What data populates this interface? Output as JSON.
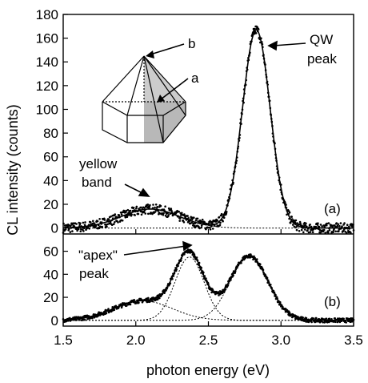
{
  "chart_data": {
    "type": "scatter",
    "xlabel": "photon energy (eV)",
    "ylabel": "CL intensity (counts)",
    "xlim": [
      1.5,
      3.5
    ],
    "x_ticks": [
      "1.5",
      "2.0",
      "2.5",
      "3.0",
      "3.5"
    ],
    "grid": false,
    "panels": [
      {
        "tag": "(a)",
        "ylim": [
          -5,
          180
        ],
        "y_ticks": [
          "0",
          "20",
          "40",
          "60",
          "80",
          "100",
          "120",
          "140",
          "160",
          "180"
        ],
        "components": [
          {
            "peak_ev": 2.1,
            "height": 16,
            "width_ev": 0.2
          },
          {
            "peak_ev": 2.83,
            "height": 167,
            "width_ev": 0.095
          }
        ],
        "annotations": [
          {
            "text": "QW",
            "x": 3.06,
            "y": 168
          },
          {
            "text": "peak",
            "x": 3.06,
            "y": 141
          },
          {
            "text": "yellow",
            "x": 1.8,
            "y": 45
          },
          {
            "text": "band",
            "x": 1.8,
            "y": 25
          }
        ]
      },
      {
        "tag": "(b)",
        "ylim": [
          -5,
          75
        ],
        "y_ticks": [
          "0",
          "20",
          "40",
          "60"
        ],
        "components": [
          {
            "peak_ev": 2.05,
            "height": 17,
            "width_ev": 0.2
          },
          {
            "peak_ev": 2.37,
            "height": 55,
            "width_ev": 0.1
          },
          {
            "peak_ev": 2.78,
            "height": 56,
            "width_ev": 0.13
          }
        ],
        "annotations": [
          {
            "text": "\"apex\"",
            "x": 1.7,
            "y": 58
          },
          {
            "text": "peak",
            "x": 1.7,
            "y": 40
          }
        ]
      }
    ],
    "inset": {
      "labels": [
        "a",
        "b"
      ]
    }
  }
}
